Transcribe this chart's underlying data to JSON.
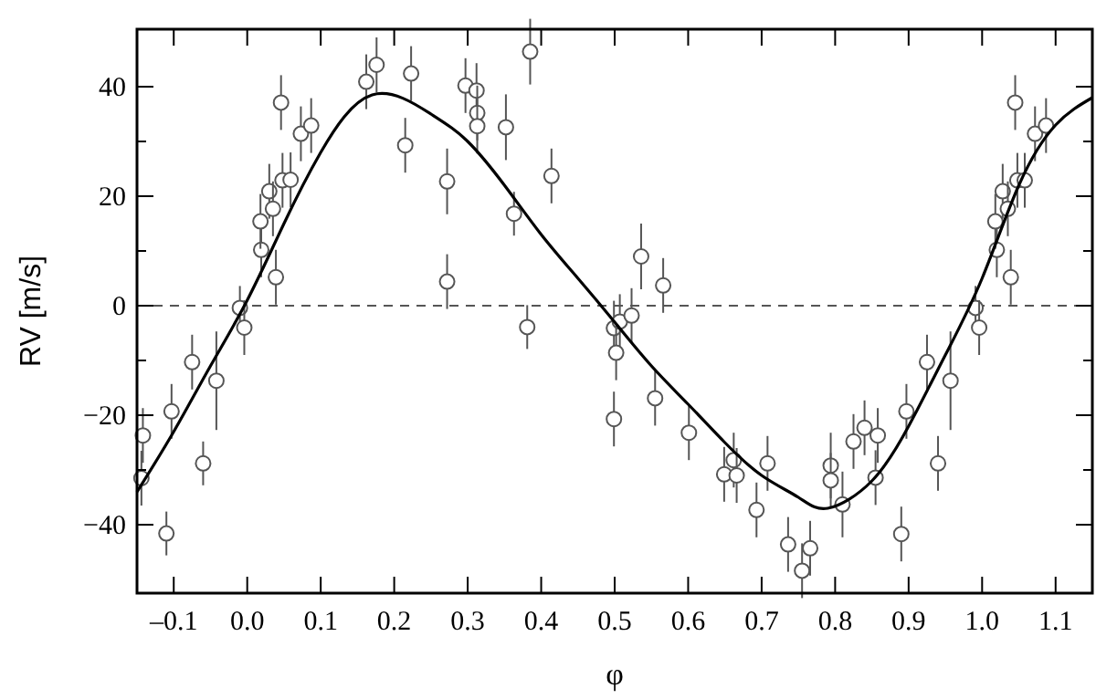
{
  "chart_data": {
    "type": "scatter",
    "xlabel": "φ",
    "ylabel": "RV [m/s]",
    "xlim": [
      -0.15,
      1.15
    ],
    "ylim": [
      -52.5,
      50.5
    ],
    "xticks": [
      {
        "value": -0.1,
        "label": "–0.1"
      },
      {
        "value": 0,
        "label": "0.0"
      },
      {
        "value": 0.1,
        "label": "0.1"
      },
      {
        "value": 0.2,
        "label": "0.2"
      },
      {
        "value": 0.3,
        "label": "0.3"
      },
      {
        "value": 0.4,
        "label": "0.4"
      },
      {
        "value": 0.5,
        "label": "0.5"
      },
      {
        "value": 0.6,
        "label": "0.6"
      },
      {
        "value": 0.7,
        "label": "0.7"
      },
      {
        "value": 0.8,
        "label": "0.8"
      },
      {
        "value": 0.9,
        "label": "0.9"
      },
      {
        "value": 1,
        "label": "1.0"
      },
      {
        "value": 1.1,
        "label": "1.1"
      }
    ],
    "yticks": [
      {
        "value": -40,
        "label": "−40"
      },
      {
        "value": -30,
        "label": null
      },
      {
        "value": -20,
        "label": "−20"
      },
      {
        "value": -10,
        "label": null
      },
      0,
      {
        "value": 10,
        "label": null
      },
      20,
      {
        "value": 30,
        "label": null
      },
      40
    ],
    "ref_lines": [
      {
        "axis": "y",
        "value": 0,
        "line_style": "dashed",
        "color": "#555555"
      }
    ],
    "series": [
      {
        "color": "#555555",
        "marker": "circle",
        "x": [
          -0.142,
          -0.144,
          -0.11,
          -0.103,
          -0.075,
          -0.06,
          -0.042,
          -0.01,
          -0.004,
          0.019,
          0.018,
          0.03,
          0.035,
          0.039,
          0.046,
          0.048,
          0.059,
          0.073,
          0.087,
          0.162,
          0.176,
          0.223,
          0.215,
          0.272,
          0.272,
          0.297,
          0.312,
          0.313,
          0.313,
          0.352,
          0.385,
          0.363,
          0.381,
          0.414,
          0.499,
          0.507,
          0.502,
          0.523,
          0.499,
          0.536,
          0.566,
          0.555,
          0.601,
          0.649,
          0.662,
          0.666,
          0.708,
          0.693,
          0.736,
          0.755,
          0.766,
          0.794,
          0.794,
          0.81,
          0.825,
          0.84,
          0.858,
          0.855,
          0.89,
          0.897,
          0.925,
          0.94,
          0.957,
          0.991,
          0.996,
          1.02,
          1.018,
          1.028,
          1.035,
          1.039,
          1.045,
          1.048,
          1.058,
          1.072,
          1.087
        ],
        "values": [
          -23.7,
          -31.5,
          -41.6,
          -19.3,
          -10.3,
          -28.8,
          -13.7,
          -0.4,
          -4,
          10.2,
          15.4,
          20.9,
          17.7,
          5.2,
          37.1,
          22.9,
          23,
          31.4,
          32.9,
          40.9,
          44,
          42.4,
          29.3,
          22.7,
          4.4,
          40.2,
          39.3,
          35.2,
          32.8,
          32.6,
          46.4,
          16.8,
          -3.9,
          23.7,
          -4.1,
          -2.9,
          -8.6,
          -1.8,
          -20.7,
          9,
          3.7,
          -16.9,
          -23.2,
          -30.8,
          -28.2,
          -31,
          -28.8,
          -37.3,
          -43.6,
          -48.4,
          -44.3,
          -29.2,
          -31.9,
          -36.3,
          -24.8,
          -22.3,
          -23.7,
          -31.4,
          -41.7,
          -19.3,
          -10.3,
          -28.8,
          -13.7,
          -0.4,
          -4,
          10.2,
          15.4,
          20.9,
          17.7,
          5.2,
          37.1,
          22.9,
          22.9,
          31.4,
          32.9
        ],
        "errors": [
          5,
          5,
          4,
          5,
          5,
          4,
          9,
          4,
          5,
          5,
          5,
          5,
          5,
          5,
          5,
          5,
          5,
          5,
          5,
          5,
          5,
          5,
          5,
          6,
          5,
          5,
          5,
          5,
          5,
          6,
          6,
          4,
          4,
          5,
          5,
          5,
          5,
          5,
          5,
          6,
          5,
          5,
          5,
          5,
          5,
          5,
          5,
          5,
          5,
          5,
          5,
          6,
          5,
          6,
          5,
          5,
          5,
          5,
          5,
          5,
          5,
          5,
          9,
          4,
          5,
          5,
          5,
          5,
          5,
          5,
          5,
          5,
          5,
          5,
          5
        ]
      },
      {
        "type": "line",
        "color": "#000000",
        "line_style": "solid",
        "x": [
          -0.15,
          -0.1,
          -0.05,
          0,
          0.05,
          0.1,
          0.17,
          0.25,
          0.3,
          0.35,
          0.4,
          0.45,
          0.5,
          0.55,
          0.6,
          0.65,
          0.7,
          0.75,
          0.79,
          0.85,
          0.9,
          0.95,
          1.0,
          1.05,
          1.1,
          1.15
        ],
        "values": [
          -34,
          -23,
          -11,
          1,
          15,
          28,
          38.5,
          35,
          30,
          22,
          13,
          5,
          -3,
          -11,
          -18,
          -25,
          -31,
          -35,
          -37,
          -32,
          -22,
          -9,
          5,
          22,
          33,
          38
        ]
      }
    ]
  }
}
